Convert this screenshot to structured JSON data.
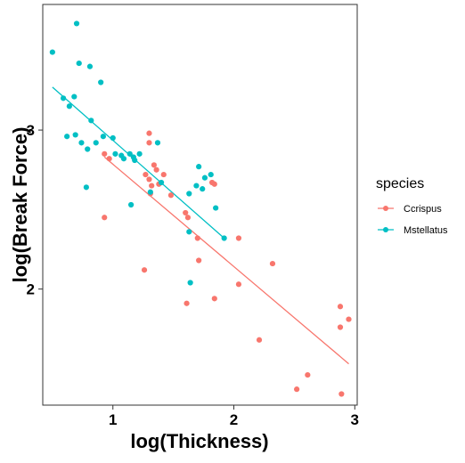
{
  "chart_data": {
    "type": "scatter",
    "title": "",
    "xlabel": "log(Thickness)",
    "ylabel": "log(Break Force)",
    "xlim": [
      0.42,
      3.02
    ],
    "ylim": [
      1.27,
      3.79
    ],
    "x_ticks": [
      1,
      2,
      3
    ],
    "y_ticks": [
      2,
      3
    ],
    "x_tick_labels": [
      "1",
      "2",
      "3"
    ],
    "y_tick_labels": [
      "2",
      "3"
    ],
    "grid": false,
    "legend_position": "right",
    "legend_title": "species",
    "series": [
      {
        "name": "Ccrispus",
        "color": "#F8766D",
        "points": [
          [
            0.93,
            2.85
          ],
          [
            0.97,
            2.82
          ],
          [
            0.93,
            2.45
          ],
          [
            1.26,
            2.12
          ],
          [
            1.3,
            2.98
          ],
          [
            1.3,
            2.92
          ],
          [
            1.34,
            2.78
          ],
          [
            1.27,
            2.72
          ],
          [
            1.3,
            2.69
          ],
          [
            1.32,
            2.65
          ],
          [
            1.38,
            2.66
          ],
          [
            1.42,
            2.72
          ],
          [
            1.36,
            2.75
          ],
          [
            1.48,
            2.59
          ],
          [
            1.31,
            2.6
          ],
          [
            1.6,
            2.48
          ],
          [
            1.62,
            2.45
          ],
          [
            1.7,
            2.32
          ],
          [
            1.71,
            2.18
          ],
          [
            1.82,
            2.67
          ],
          [
            1.84,
            2.66
          ],
          [
            1.61,
            1.91
          ],
          [
            1.84,
            1.94
          ],
          [
            2.04,
            2.32
          ],
          [
            2.04,
            2.03
          ],
          [
            2.32,
            2.16
          ],
          [
            2.21,
            1.68
          ],
          [
            2.52,
            1.37
          ],
          [
            2.61,
            1.46
          ],
          [
            2.88,
            1.89
          ],
          [
            2.88,
            1.76
          ],
          [
            2.95,
            1.81
          ],
          [
            2.89,
            1.34
          ]
        ],
        "fit": [
          [
            0.93,
            2.83
          ],
          [
            2.95,
            1.53
          ]
        ]
      },
      {
        "name": "Mstellatus",
        "color": "#00BFC4",
        "points": [
          [
            0.5,
            3.49
          ],
          [
            0.59,
            3.2
          ],
          [
            0.62,
            2.96
          ],
          [
            0.64,
            3.15
          ],
          [
            0.68,
            3.21
          ],
          [
            0.69,
            2.97
          ],
          [
            0.7,
            3.67
          ],
          [
            0.72,
            3.42
          ],
          [
            0.74,
            2.92
          ],
          [
            0.78,
            2.64
          ],
          [
            0.79,
            2.88
          ],
          [
            0.81,
            3.4
          ],
          [
            0.82,
            3.06
          ],
          [
            0.86,
            2.92
          ],
          [
            0.9,
            3.3
          ],
          [
            0.92,
            2.96
          ],
          [
            1.0,
            2.95
          ],
          [
            1.02,
            2.85
          ],
          [
            1.07,
            2.84
          ],
          [
            1.09,
            2.82
          ],
          [
            1.14,
            2.85
          ],
          [
            1.15,
            2.53
          ],
          [
            1.17,
            2.83
          ],
          [
            1.18,
            2.81
          ],
          [
            1.22,
            2.85
          ],
          [
            1.31,
            2.61
          ],
          [
            1.37,
            2.92
          ],
          [
            1.4,
            2.67
          ],
          [
            1.63,
            2.6
          ],
          [
            1.63,
            2.36
          ],
          [
            1.64,
            2.04
          ],
          [
            1.69,
            2.65
          ],
          [
            1.71,
            2.77
          ],
          [
            1.74,
            2.63
          ],
          [
            1.76,
            2.7
          ],
          [
            1.81,
            2.72
          ],
          [
            1.85,
            2.51
          ],
          [
            1.92,
            2.32
          ]
        ],
        "fit": [
          [
            0.5,
            3.27
          ],
          [
            1.92,
            2.32
          ]
        ]
      }
    ]
  }
}
